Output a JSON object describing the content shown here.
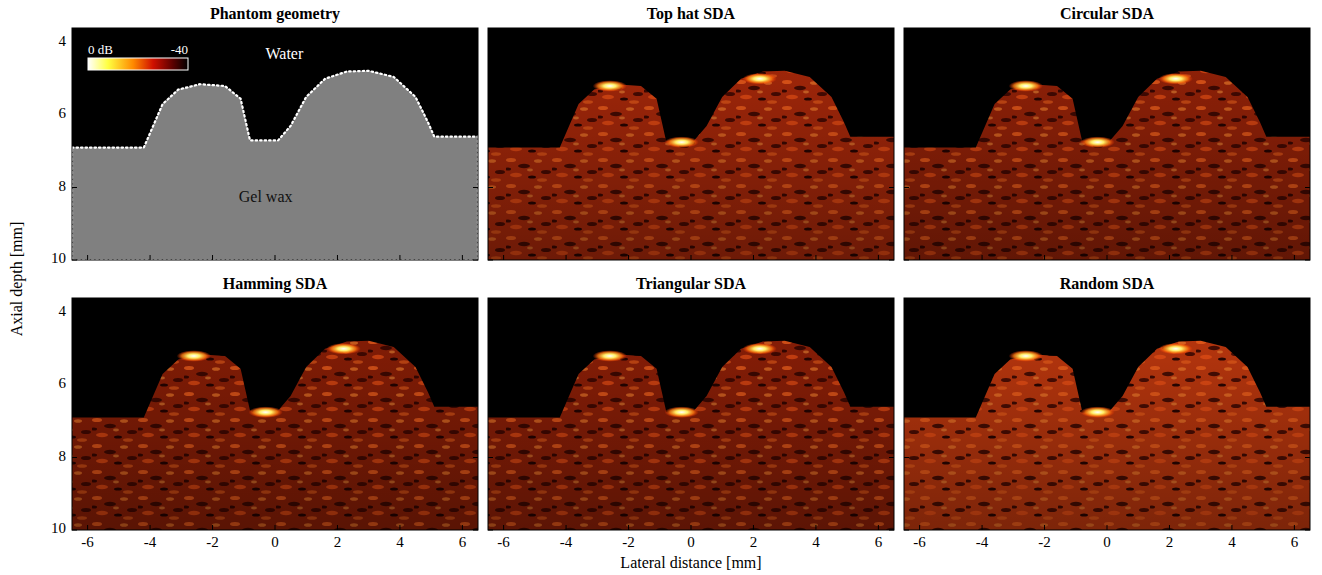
{
  "chart_data": [
    {
      "type": "diagram",
      "title": "Phantom geometry",
      "xlim": [
        -6.5,
        6.5
      ],
      "ylim": [
        3.6,
        10
      ],
      "xticks": [
        -6,
        -4,
        -2,
        0,
        2,
        4,
        6
      ],
      "yticks": [
        4,
        6,
        8,
        10
      ],
      "tick_labels": "y",
      "color": "#808080",
      "surface": {
        "x": [
          -6.5,
          -4.2,
          -3.6,
          -3.1,
          -2.4,
          -1.6,
          -1.1,
          -0.8,
          0.1,
          0.5,
          1.0,
          1.6,
          2.3,
          3.0,
          3.8,
          4.5,
          4.9,
          5.1,
          6.5
        ],
        "y": [
          6.9,
          6.9,
          5.7,
          5.3,
          5.15,
          5.2,
          5.55,
          6.7,
          6.7,
          6.3,
          5.5,
          5.0,
          4.8,
          4.78,
          4.95,
          5.5,
          6.2,
          6.6,
          6.6
        ]
      },
      "annotations": [
        {
          "text": "Water",
          "x": 0.3,
          "y": 4.35
        },
        {
          "text": "Gel wax",
          "x": -0.3,
          "y": 8.3
        }
      ],
      "colorbar": {
        "range": [
          0,
          -40
        ],
        "ticks": [
          {
            "value": 0,
            "label": "0 dB"
          },
          -40
        ]
      }
    },
    {
      "type": "image",
      "title": "Top hat SDA",
      "xlim": [
        -6.5,
        6.5
      ],
      "ylim": [
        3.6,
        10
      ],
      "xticks": [
        -6,
        -4,
        -2,
        0,
        2,
        4,
        6
      ],
      "yticks": [
        4,
        6,
        8,
        10
      ],
      "tick_labels": false,
      "color": "#a8280a",
      "echoes": {
        "x": [
          -2.6,
          -0.3,
          2.2
        ],
        "y": [
          5.2,
          6.75,
          5.0
        ]
      }
    },
    {
      "type": "image",
      "title": "Circular SDA",
      "xlim": [
        -6.5,
        6.5
      ],
      "ylim": [
        3.6,
        10
      ],
      "xticks": [
        -6,
        -4,
        -2,
        0,
        2,
        4,
        6
      ],
      "yticks": [
        4,
        6,
        8,
        10
      ],
      "tick_labels": false,
      "color": "#962208",
      "echoes": {
        "x": [
          -2.6,
          -0.3,
          2.2
        ],
        "y": [
          5.2,
          6.75,
          5.0
        ]
      }
    },
    {
      "type": "image",
      "title": "Hamming SDA",
      "xlim": [
        -6.5,
        6.5
      ],
      "ylim": [
        3.6,
        10
      ],
      "xticks": [
        -6,
        -4,
        -2,
        0,
        2,
        4,
        6
      ],
      "yticks": [
        4,
        6,
        8,
        10
      ],
      "tick_labels": true,
      "color": "#8a1e06",
      "echoes": {
        "x": [
          -2.6,
          -0.3,
          2.2
        ],
        "y": [
          5.2,
          6.75,
          5.0
        ]
      }
    },
    {
      "type": "image",
      "title": "Triangular SDA",
      "xlim": [
        -6.5,
        6.5
      ],
      "ylim": [
        3.6,
        10
      ],
      "xticks": [
        -6,
        -4,
        -2,
        0,
        2,
        4,
        6
      ],
      "yticks": [
        4,
        6,
        8,
        10
      ],
      "tick_labels": "x",
      "color": "#8e1f07",
      "echoes": {
        "x": [
          -2.6,
          -0.3,
          2.2
        ],
        "y": [
          5.2,
          6.75,
          5.0
        ]
      }
    },
    {
      "type": "image",
      "title": "Random SDA",
      "xlim": [
        -6.5,
        6.5
      ],
      "ylim": [
        3.6,
        10
      ],
      "xticks": [
        -6,
        -4,
        -2,
        0,
        2,
        4,
        6
      ],
      "yticks": [
        4,
        6,
        8,
        10
      ],
      "tick_labels": "x",
      "color": "#c0380e",
      "echoes": {
        "x": [
          -2.6,
          -0.3,
          2.2
        ],
        "y": [
          5.2,
          6.75,
          5.0
        ]
      }
    }
  ],
  "figure": {
    "x_label": "Lateral distance [mm]",
    "y_label": "Axial depth [mm]"
  }
}
